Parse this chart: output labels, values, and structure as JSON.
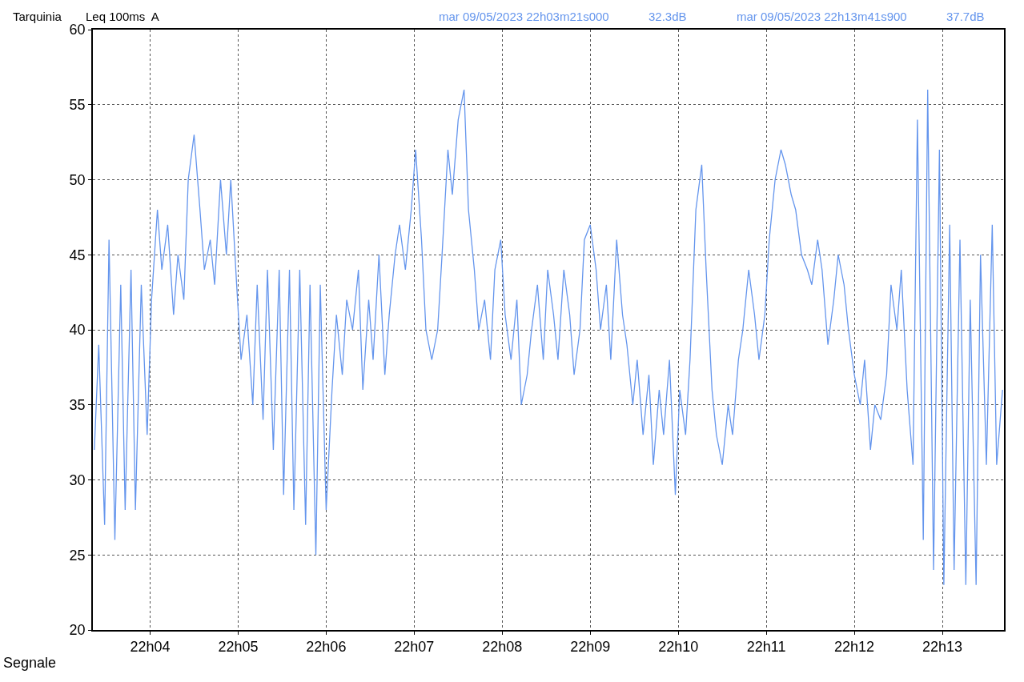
{
  "chart_data": {
    "type": "line",
    "title": "Tarquinia",
    "subtitle": "Leq 100ms  A",
    "annotations": [
      "mar 09/05/2023 22h03m21s000",
      "32.3dB",
      "mar 09/05/2023 22h13m41s900",
      "37.7dB",
      "Segnale"
    ],
    "xlim": [
      "2023-05-09T22:03:21",
      "2023-05-09T22:13:42"
    ],
    "ylim": [
      20,
      60
    ],
    "xticks": [
      {
        "value": "2023-05-09T22:04",
        "label": "22h04"
      },
      {
        "value": "2023-05-09T22:05",
        "label": "22h05"
      },
      {
        "value": "2023-05-09T22:06",
        "label": "22h06"
      },
      {
        "value": "2023-05-09T22:07",
        "label": "22h07"
      },
      {
        "value": "2023-05-09T22:08",
        "label": "22h08"
      },
      {
        "value": "2023-05-09T22:09",
        "label": "22h09"
      },
      {
        "value": "2023-05-09T22:10",
        "label": "22h10"
      },
      {
        "value": "2023-05-09T22:11",
        "label": "22h11"
      },
      {
        "value": "2023-05-09T22:12",
        "label": "22h12"
      },
      {
        "value": "2023-05-09T22:13",
        "label": "22h13"
      }
    ],
    "yticks": [
      20,
      25,
      30,
      35,
      40,
      45,
      50,
      55,
      60
    ],
    "grid": true,
    "x": [
      "2023-05-09T22:03:22",
      "2023-05-09T22:03:25",
      "2023-05-09T22:03:29",
      "2023-05-09T22:03:32",
      "2023-05-09T22:03:36",
      "2023-05-09T22:03:40",
      "2023-05-09T22:03:43",
      "2023-05-09T22:03:47",
      "2023-05-09T22:03:50",
      "2023-05-09T22:03:54",
      "2023-05-09T22:03:58",
      "2023-05-09T22:04:01",
      "2023-05-09T22:04:05",
      "2023-05-09T22:04:08",
      "2023-05-09T22:04:12",
      "2023-05-09T22:04:16",
      "2023-05-09T22:04:19",
      "2023-05-09T22:04:23",
      "2023-05-09T22:04:26",
      "2023-05-09T22:04:30",
      "2023-05-09T22:04:34",
      "2023-05-09T22:04:37",
      "2023-05-09T22:04:41",
      "2023-05-09T22:04:44",
      "2023-05-09T22:04:48",
      "2023-05-09T22:04:52",
      "2023-05-09T22:04:55",
      "2023-05-09T22:04:59",
      "2023-05-09T22:05:02",
      "2023-05-09T22:05:06",
      "2023-05-09T22:05:10",
      "2023-05-09T22:05:13",
      "2023-05-09T22:05:17",
      "2023-05-09T22:05:20",
      "2023-05-09T22:05:24",
      "2023-05-09T22:05:28",
      "2023-05-09T22:05:31",
      "2023-05-09T22:05:35",
      "2023-05-09T22:05:38",
      "2023-05-09T22:05:42",
      "2023-05-09T22:05:46",
      "2023-05-09T22:05:49",
      "2023-05-09T22:05:53",
      "2023-05-09T22:05:56",
      "2023-05-09T22:06:00",
      "2023-05-09T22:06:04",
      "2023-05-09T22:06:07",
      "2023-05-09T22:06:11",
      "2023-05-09T22:06:14",
      "2023-05-09T22:06:18",
      "2023-05-09T22:06:22",
      "2023-05-09T22:06:25",
      "2023-05-09T22:06:29",
      "2023-05-09T22:06:32",
      "2023-05-09T22:06:36",
      "2023-05-09T22:06:40",
      "2023-05-09T22:06:43",
      "2023-05-09T22:06:47",
      "2023-05-09T22:06:50",
      "2023-05-09T22:06:54",
      "2023-05-09T22:06:58",
      "2023-05-09T22:07:01",
      "2023-05-09T22:07:05",
      "2023-05-09T22:07:08",
      "2023-05-09T22:07:12",
      "2023-05-09T22:07:16",
      "2023-05-09T22:07:19",
      "2023-05-09T22:07:23",
      "2023-05-09T22:07:26",
      "2023-05-09T22:07:30",
      "2023-05-09T22:07:34",
      "2023-05-09T22:07:37",
      "2023-05-09T22:07:41",
      "2023-05-09T22:07:44",
      "2023-05-09T22:07:48",
      "2023-05-09T22:07:52",
      "2023-05-09T22:07:55",
      "2023-05-09T22:07:59",
      "2023-05-09T22:08:02",
      "2023-05-09T22:08:06",
      "2023-05-09T22:08:10",
      "2023-05-09T22:08:13",
      "2023-05-09T22:08:17",
      "2023-05-09T22:08:20",
      "2023-05-09T22:08:24",
      "2023-05-09T22:08:28",
      "2023-05-09T22:08:31",
      "2023-05-09T22:08:35",
      "2023-05-09T22:08:38",
      "2023-05-09T22:08:42",
      "2023-05-09T22:08:46",
      "2023-05-09T22:08:49",
      "2023-05-09T22:08:53",
      "2023-05-09T22:08:56",
      "2023-05-09T22:09:00",
      "2023-05-09T22:09:04",
      "2023-05-09T22:09:07",
      "2023-05-09T22:09:11",
      "2023-05-09T22:09:14",
      "2023-05-09T22:09:18",
      "2023-05-09T22:09:22",
      "2023-05-09T22:09:25",
      "2023-05-09T22:09:29",
      "2023-05-09T22:09:32",
      "2023-05-09T22:09:36",
      "2023-05-09T22:09:40",
      "2023-05-09T22:09:43",
      "2023-05-09T22:09:47",
      "2023-05-09T22:09:50",
      "2023-05-09T22:09:54",
      "2023-05-09T22:09:58",
      "2023-05-09T22:10:01",
      "2023-05-09T22:10:05",
      "2023-05-09T22:10:08",
      "2023-05-09T22:10:12",
      "2023-05-09T22:10:16",
      "2023-05-09T22:10:19",
      "2023-05-09T22:10:23",
      "2023-05-09T22:10:26",
      "2023-05-09T22:10:30",
      "2023-05-09T22:10:34",
      "2023-05-09T22:10:37",
      "2023-05-09T22:10:41",
      "2023-05-09T22:10:44",
      "2023-05-09T22:10:48",
      "2023-05-09T22:10:52",
      "2023-05-09T22:10:55",
      "2023-05-09T22:10:59",
      "2023-05-09T22:11:02",
      "2023-05-09T22:11:06",
      "2023-05-09T22:11:10",
      "2023-05-09T22:11:13",
      "2023-05-09T22:11:17",
      "2023-05-09T22:11:20",
      "2023-05-09T22:11:24",
      "2023-05-09T22:11:28",
      "2023-05-09T22:11:31",
      "2023-05-09T22:11:35",
      "2023-05-09T22:11:38",
      "2023-05-09T22:11:42",
      "2023-05-09T22:11:46",
      "2023-05-09T22:11:49",
      "2023-05-09T22:11:53",
      "2023-05-09T22:11:56",
      "2023-05-09T22:12:00",
      "2023-05-09T22:12:04",
      "2023-05-09T22:12:07",
      "2023-05-09T22:12:11",
      "2023-05-09T22:12:14",
      "2023-05-09T22:12:18",
      "2023-05-09T22:12:22",
      "2023-05-09T22:12:25",
      "2023-05-09T22:12:29",
      "2023-05-09T22:12:32",
      "2023-05-09T22:12:36",
      "2023-05-09T22:12:40",
      "2023-05-09T22:12:43",
      "2023-05-09T22:12:47",
      "2023-05-09T22:12:50",
      "2023-05-09T22:12:54",
      "2023-05-09T22:12:58",
      "2023-05-09T22:13:01",
      "2023-05-09T22:13:05",
      "2023-05-09T22:13:08",
      "2023-05-09T22:13:12",
      "2023-05-09T22:13:16",
      "2023-05-09T22:13:19",
      "2023-05-09T22:13:23",
      "2023-05-09T22:13:26",
      "2023-05-09T22:13:30",
      "2023-05-09T22:13:34",
      "2023-05-09T22:13:37",
      "2023-05-09T22:13:41"
    ],
    "series": [
      {
        "color": "#6495ed",
        "values": [
          32,
          39,
          27,
          46,
          26,
          43,
          28,
          44,
          28,
          43,
          33,
          42,
          48,
          44,
          47,
          41,
          45,
          42,
          50,
          53,
          48,
          44,
          46,
          43,
          50,
          45,
          50,
          43,
          38,
          41,
          35,
          43,
          34,
          44,
          32,
          44,
          29,
          44,
          28,
          44,
          27,
          43,
          25,
          43,
          28,
          36,
          41,
          37,
          42,
          40,
          44,
          36,
          42,
          38,
          45,
          37,
          41,
          45,
          47,
          44,
          48,
          52,
          46,
          40,
          38,
          40,
          45,
          52,
          49,
          54,
          56,
          48,
          44,
          40,
          42,
          38,
          44,
          46,
          41,
          38,
          42,
          35,
          37,
          40,
          43,
          38,
          44,
          41,
          38,
          44,
          41,
          37,
          40,
          46,
          47,
          44,
          40,
          43,
          38,
          46,
          41,
          39,
          35,
          38,
          33,
          37,
          31,
          36,
          33,
          38,
          29,
          36,
          33,
          38,
          48,
          51,
          44,
          36,
          33,
          31,
          35,
          33,
          38,
          40,
          44,
          41,
          38,
          41,
          46,
          50,
          52,
          51,
          49,
          48,
          45,
          44,
          43,
          46,
          44,
          39,
          42,
          45,
          43,
          40,
          37,
          35,
          38,
          32,
          35,
          34,
          37,
          43,
          40,
          44,
          36,
          31,
          54,
          26,
          56,
          24,
          52,
          23,
          47,
          24,
          46,
          23,
          42,
          23,
          45,
          31,
          47,
          31,
          36
        ]
      }
    ]
  }
}
